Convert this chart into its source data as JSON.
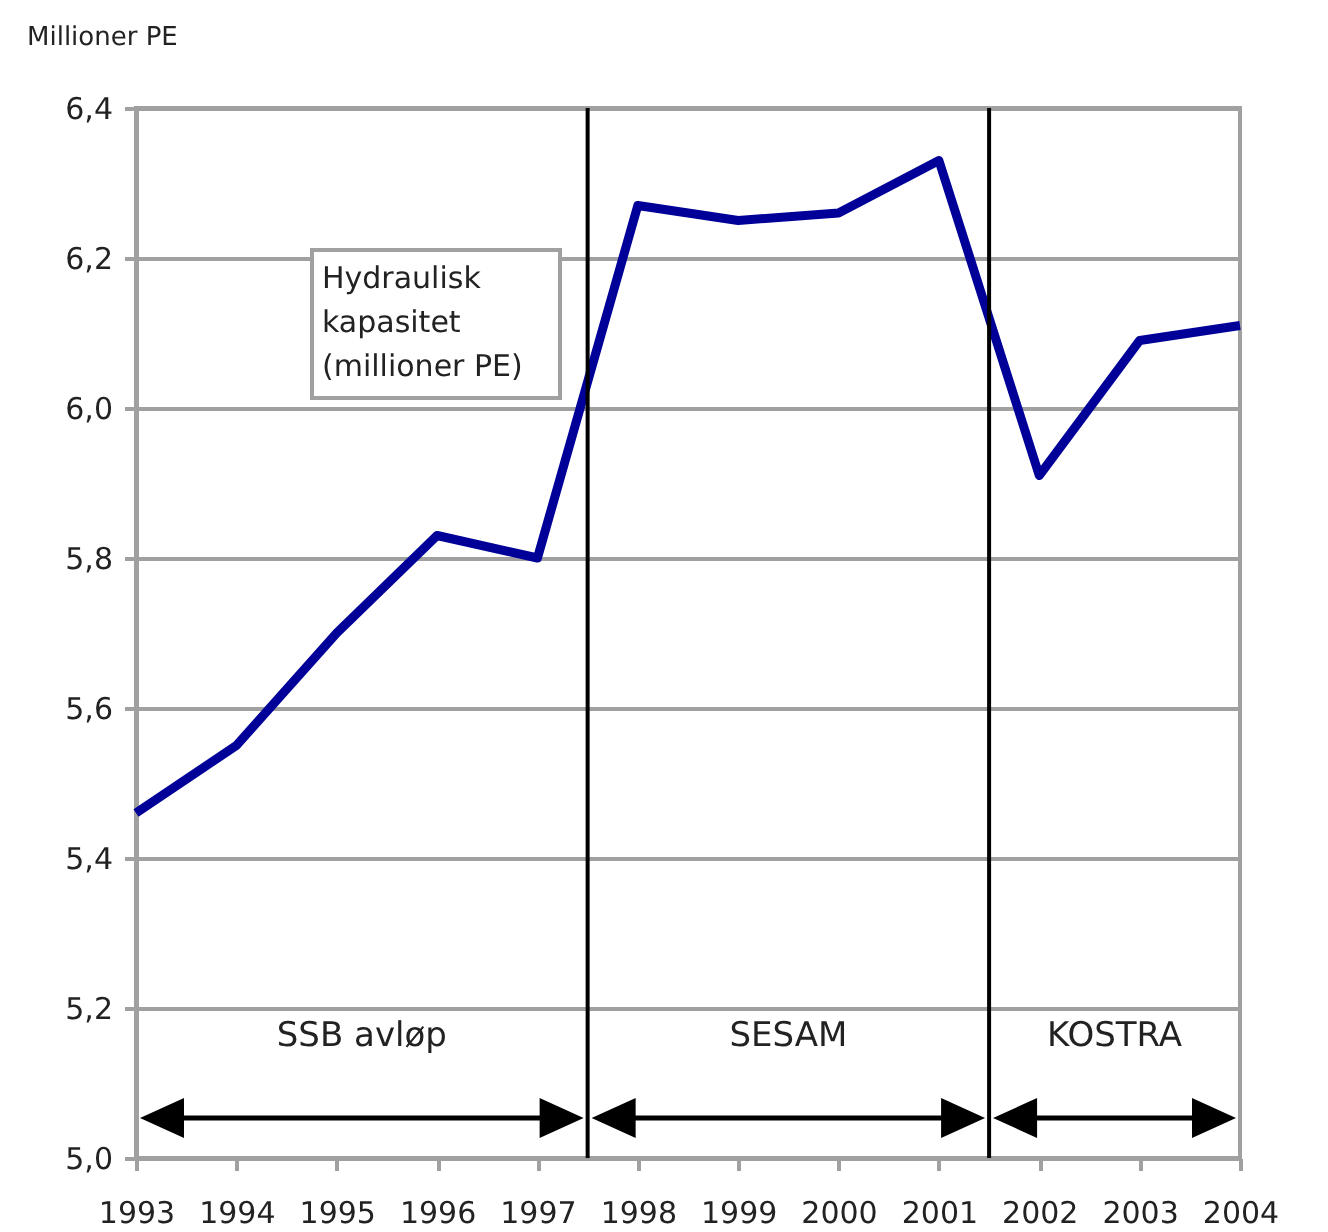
{
  "chart_data": {
    "type": "line",
    "ylabel": "Millioner PE",
    "x": [
      1993,
      1994,
      1995,
      1996,
      1997,
      1998,
      1999,
      2000,
      2001,
      2002,
      2003,
      2004
    ],
    "series": [
      {
        "color": "#000099",
        "values": [
          5.46,
          5.55,
          5.7,
          5.83,
          5.8,
          6.27,
          6.25,
          6.26,
          6.33,
          5.91,
          6.09,
          6.11
        ]
      }
    ],
    "xlim": [
      1993,
      2004
    ],
    "xticks": [
      1993,
      1994,
      1995,
      1996,
      1997,
      1998,
      1999,
      2000,
      2001,
      2002,
      2003,
      2004
    ],
    "ylim": [
      5.0,
      6.4
    ],
    "yticks": [
      {
        "value": 5.0,
        "label": "5,0"
      },
      {
        "value": 5.2,
        "label": "5,2"
      },
      {
        "value": 5.4,
        "label": "5,4"
      },
      {
        "value": 5.6,
        "label": "5,6"
      },
      {
        "value": 5.8,
        "label": "5,8"
      },
      {
        "value": 6.0,
        "label": "6,0"
      },
      {
        "value": 6.2,
        "label": "6,2"
      },
      {
        "value": 6.4,
        "label": "6,4"
      }
    ],
    "grid": "y",
    "marker": "none",
    "line_style": "solid",
    "ref_lines": [
      {
        "axis": "x",
        "value": 1997.5,
        "color": "#000000"
      },
      {
        "axis": "x",
        "value": 2001.5,
        "color": "#000000"
      }
    ],
    "annotations": [
      "Hydraulisk\nkapasitet\n(millioner PE)",
      "SSB avløp",
      "SESAM",
      "KOSTRA"
    ]
  }
}
